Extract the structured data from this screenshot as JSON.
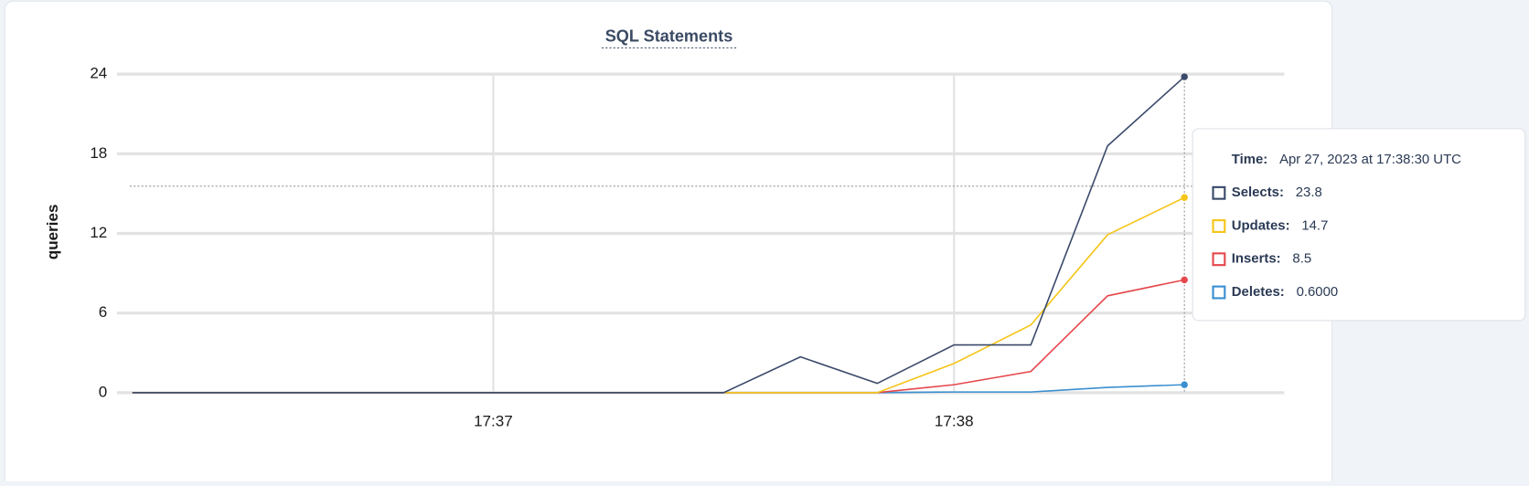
{
  "chart_data": {
    "type": "line",
    "title": "SQL Statements",
    "y_label": "queries",
    "x": [
      "17:36:13",
      "17:37:30",
      "17:37:40",
      "17:37:50",
      "17:38:00",
      "17:38:10",
      "17:38:20",
      "17:38:30"
    ],
    "xlim": [
      "17:36:11",
      "17:38:43"
    ],
    "xticks": [
      {
        "value": "17:37:00",
        "label": "17:37"
      },
      {
        "value": "17:38:00",
        "label": "17:38"
      }
    ],
    "ylim": [
      0,
      24
    ],
    "yticks": [
      0,
      6,
      12,
      18,
      24
    ],
    "grid": true,
    "series": [
      {
        "name": "Selects:",
        "color": "#3b4a6b",
        "values": [
          0,
          0,
          2.7,
          0.7,
          3.6,
          3.6,
          18.6,
          23.8
        ]
      },
      {
        "name": "Updates:",
        "color": "#f5c518",
        "values": [
          0,
          0,
          0,
          0,
          2.2,
          5.1,
          11.9,
          14.7
        ]
      },
      {
        "name": "Inserts:",
        "color": "#e5484d",
        "values": [
          0,
          0,
          0,
          0,
          0.6,
          1.6,
          7.3,
          8.5
        ]
      },
      {
        "name": "Deletes:",
        "color": "#3a8fd0",
        "values": [
          0,
          0,
          0,
          0,
          0.05,
          0.05,
          0.4,
          0.6
        ]
      }
    ],
    "tooltip": {
      "time_label": "Time:",
      "time": "Apr 27, 2023 at 17:38:30 UTC",
      "values": [
        "23.8",
        "14.7",
        "8.5",
        "0.6000"
      ]
    }
  }
}
